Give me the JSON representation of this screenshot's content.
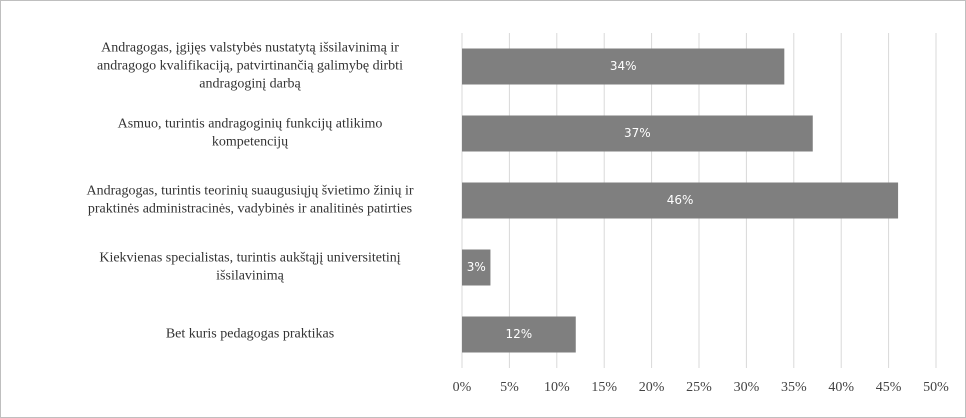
{
  "chart_data": {
    "type": "bar",
    "orientation": "horizontal",
    "categories": [
      "Andragogas, įgijęs valstybės nustatytą išsilavinimą ir\nandragogo kvalifikaciją, patvirtinančią galimybę dirbti\nandragoginį darbą",
      "Asmuo, turintis andragoginių funkcijų atlikimo\nkompetencijų",
      "Andragogas, turintis teorinių suaugusiųjų švietimo žinių ir\npraktinės administracinės, vadybinės ir analitinės patirties",
      "Kiekvienas specialistas, turintis aukštąjį universitetinį\nišsilavinimą",
      "Bet kuris pedagogas praktikas"
    ],
    "values": [
      34,
      37,
      46,
      3,
      12
    ],
    "value_labels": [
      "34%",
      "37%",
      "46%",
      "3%",
      "12%"
    ],
    "color": "#7f7f7f",
    "xlim": [
      0,
      50
    ],
    "xticks": [
      {
        "value": 0,
        "label": "0%"
      },
      {
        "value": 5,
        "label": "5%"
      },
      {
        "value": 10,
        "label": "10%"
      },
      {
        "value": 15,
        "label": "15%"
      },
      {
        "value": 20,
        "label": "20%"
      },
      {
        "value": 25,
        "label": "25%"
      },
      {
        "value": 30,
        "label": "30%"
      },
      {
        "value": 35,
        "label": "35%"
      },
      {
        "value": 40,
        "label": "40%"
      },
      {
        "value": 45,
        "label": "45%"
      },
      {
        "value": 50,
        "label": "50%"
      }
    ],
    "grid": true
  }
}
